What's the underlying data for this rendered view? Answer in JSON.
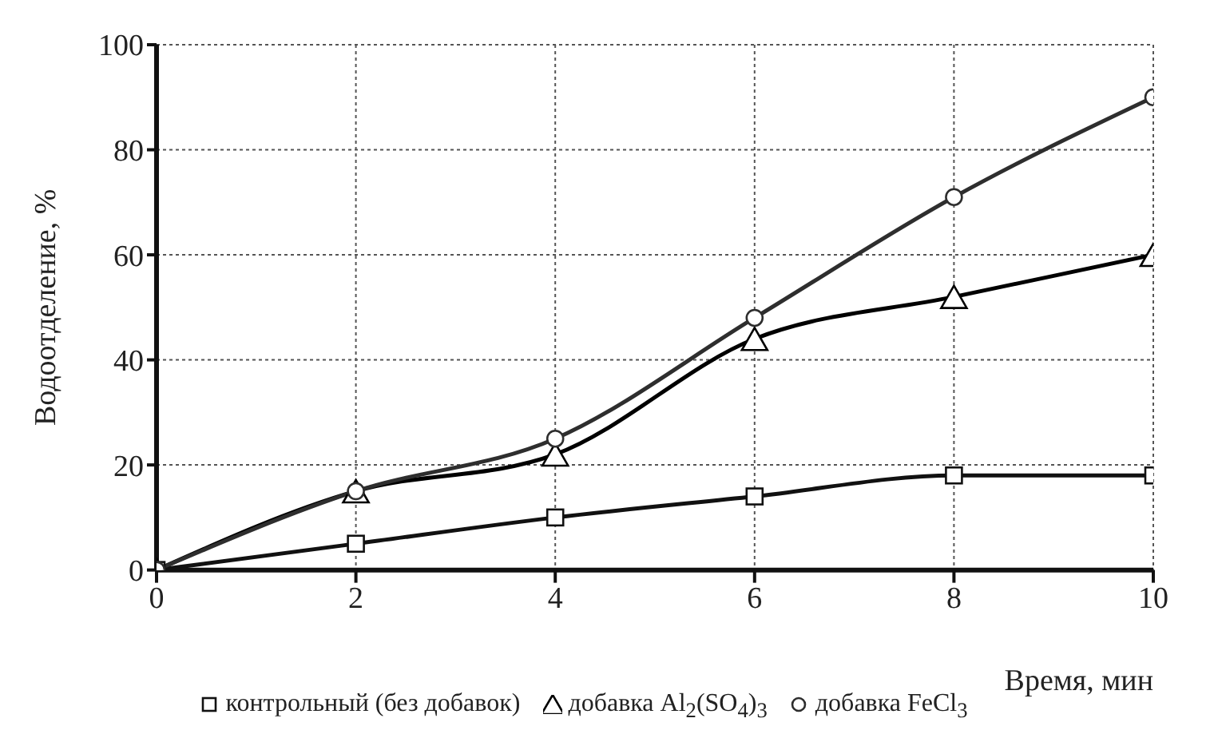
{
  "chart_data": {
    "type": "line",
    "xlabel": "Время, мин",
    "ylabel": "Водоотделение, %",
    "x": [
      0,
      2,
      4,
      6,
      8,
      10
    ],
    "xlim": [
      0,
      10
    ],
    "xticks": [
      0,
      2,
      4,
      6,
      8,
      10
    ],
    "ylim": [
      0,
      100
    ],
    "yticks": [
      0,
      20,
      40,
      60,
      80,
      100
    ],
    "grid": true,
    "legend": "bottom",
    "line_style": "solid",
    "series": [
      {
        "name": "контрольный (без добавок)",
        "color": "#111111",
        "marker": "square",
        "values": [
          0,
          5,
          10,
          14,
          18,
          18
        ]
      },
      {
        "name": "добавка Al$_{2}$(SO$_{4}$)$_{3}$",
        "color": "#000000",
        "marker": "triangle",
        "values": [
          0,
          15,
          22,
          44,
          52,
          60
        ]
      },
      {
        "name": "добавка FeCl$_{3}$",
        "color": "#2e2e2e",
        "marker": "circle",
        "values": [
          0,
          15,
          25,
          48,
          71,
          90
        ]
      }
    ]
  }
}
